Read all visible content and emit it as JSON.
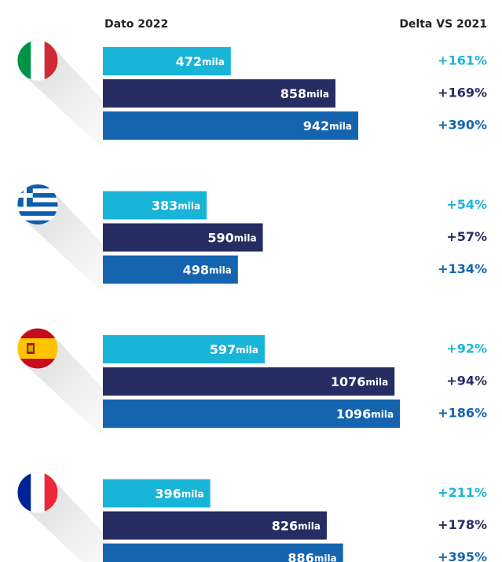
{
  "chart_data": {
    "type": "bar",
    "header_left": "Dato 2022",
    "header_right": "Delta VS 2021",
    "categories": [
      null,
      null,
      null,
      null
    ],
    "series": [
      {
        "color": "#19b5d8",
        "values": [
          472,
          383,
          597,
          396
        ],
        "value_labels": [
          "472mila",
          "383mila",
          "597mila",
          "396mila"
        ],
        "deltas": [
          161,
          54,
          92,
          211
        ],
        "delta_labels": [
          "+161%",
          "+54%",
          "+92%",
          "+211%"
        ]
      },
      {
        "color": "#262d63",
        "values": [
          858,
          590,
          1076,
          826
        ],
        "value_labels": [
          "858mila",
          "590mila",
          "1076mila",
          "826mila"
        ],
        "deltas": [
          169,
          57,
          94,
          178
        ],
        "delta_labels": [
          "+169%",
          "+57%",
          "+94%",
          "+178%"
        ]
      },
      {
        "color": "#1464b0",
        "values": [
          942,
          498,
          1096,
          886
        ],
        "value_labels": [
          "942mila",
          "498mila",
          "1096mila",
          "886mila"
        ],
        "deltas": [
          390,
          134,
          186,
          395
        ],
        "delta_labels": [
          "+390%",
          "+134%",
          "+186%",
          "+395%"
        ]
      }
    ]
  }
}
